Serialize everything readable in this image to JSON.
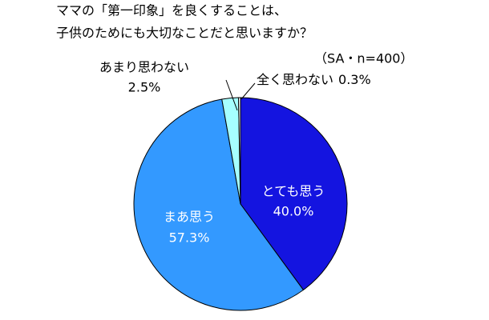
{
  "chart_data": {
    "type": "pie",
    "title": [
      "ママの「第一印象」を良くすることは、",
      "子供のためにも大切なことだと思いますか？"
    ],
    "subtitle": "（SA・n=400）",
    "categories": [
      "とても思う",
      "まあ思う",
      "あまり思わない",
      "全く思わない"
    ],
    "values": [
      40.0,
      57.3,
      2.5,
      0.3
    ],
    "value_labels": [
      "40.0%",
      "57.3%",
      "2.5%",
      "0.3%"
    ],
    "colors": [
      "#1414e0",
      "#3399ff",
      "#a6ffff",
      "#ffffff"
    ]
  }
}
